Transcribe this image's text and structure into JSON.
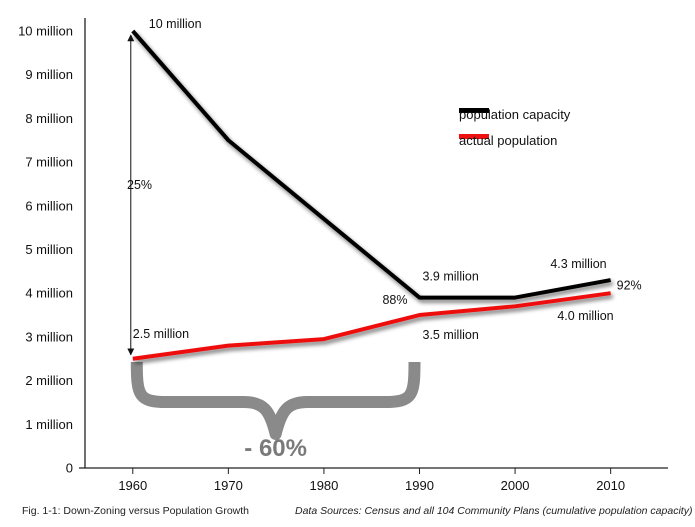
{
  "chart_data": {
    "type": "line",
    "x": [
      1960,
      1970,
      1980,
      1990,
      2000,
      2010
    ],
    "x_tick_labels": [
      "1960",
      "1970",
      "1980",
      "1990",
      "2000",
      "2010"
    ],
    "xlim": [
      1955,
      2016
    ],
    "ylim": [
      0,
      10000000
    ],
    "y_ticks": [
      0,
      1000000,
      2000000,
      3000000,
      4000000,
      5000000,
      6000000,
      7000000,
      8000000,
      9000000,
      10000000
    ],
    "y_tick_labels": [
      "0",
      "1 million",
      "2 million",
      "3 million",
      "4 million",
      "5 million",
      "6 million",
      "7 million",
      "8 million",
      "9 million",
      "10 million"
    ],
    "series": [
      {
        "name": "population capacity",
        "color": "#000000",
        "values": [
          10000000,
          7500000,
          5700000,
          3900000,
          3900000,
          4300000
        ]
      },
      {
        "name": "actual population",
        "color": "#ee1111",
        "values": [
          2500000,
          2800000,
          2950000,
          3500000,
          3700000,
          4000000
        ]
      }
    ],
    "annotations": [
      {
        "text": "10 million",
        "x": 1960,
        "y": 10000000
      },
      {
        "text": "2.5 million",
        "x": 1960,
        "y": 2500000
      },
      {
        "text": "3.9 million",
        "x": 1990,
        "y": 3900000
      },
      {
        "text": "88%",
        "x": 1990,
        "y": 3500000
      },
      {
        "text": "3.5 million",
        "x": 1990,
        "y": 3500000
      },
      {
        "text": "4.3 million",
        "x": 2010,
        "y": 4300000
      },
      {
        "text": "92%",
        "x": 2010,
        "y": 4150000
      },
      {
        "text": "4.0 million",
        "x": 2010,
        "y": 4000000
      }
    ],
    "arrow_label": "25%",
    "brace_label": "- 60%",
    "brace_range": [
      1960,
      1990
    ],
    "legend_position": "top-right",
    "grid": false
  },
  "caption": {
    "figure": "Fig. 1-1: Down-Zoning versus Population Growth",
    "sources": "Data Sources: Census and all 104 Community Plans (cumulative population capacity)"
  }
}
